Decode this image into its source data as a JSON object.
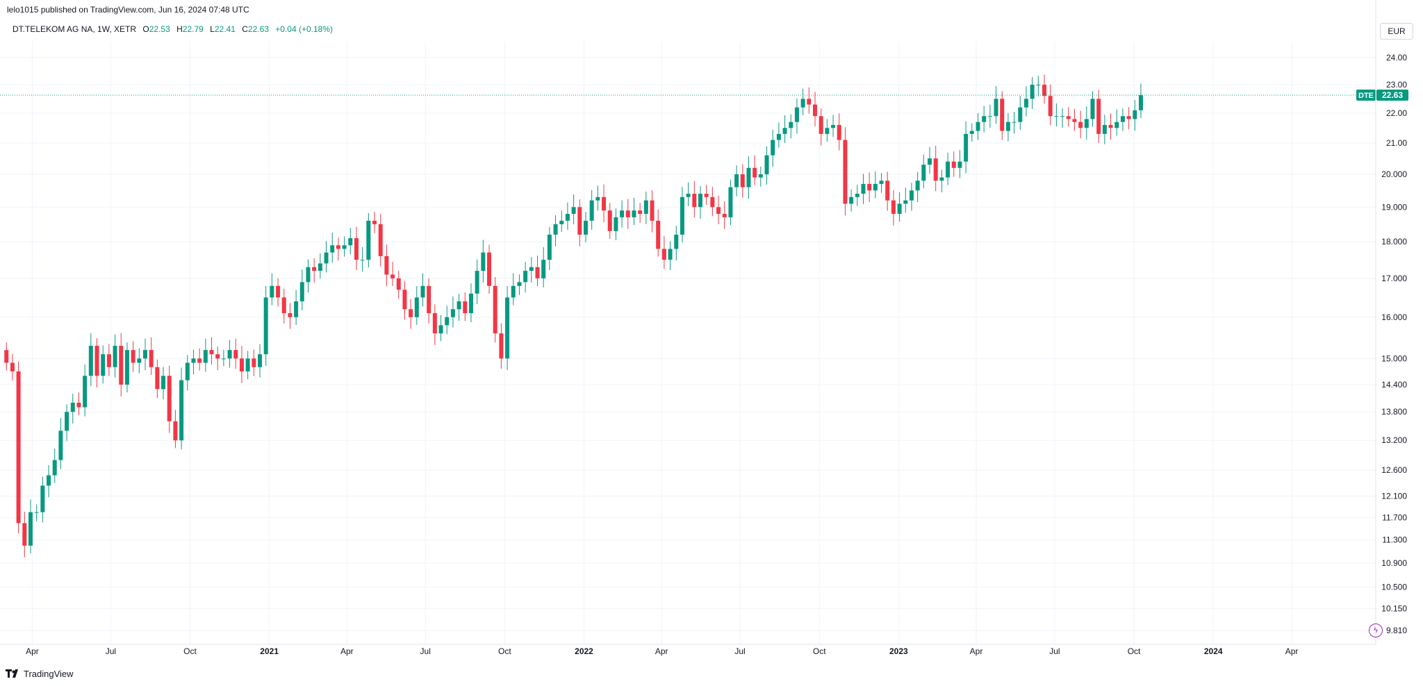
{
  "header": {
    "published": "lelo1015 published on TradingView.com, Jun 16, 2024 07:48 UTC"
  },
  "legend": {
    "symbol": "DT.TELEKOM AG NA, 1W, XETR",
    "open_label": "O",
    "open": "22.53",
    "high_label": "H",
    "high": "22.79",
    "low_label": "L",
    "low": "22.41",
    "close_label": "C",
    "close": "22.63",
    "change": "+0.04 (+0.18%)"
  },
  "currency": "EUR",
  "footer": {
    "brand": "TradingView"
  },
  "colors": {
    "up": "#089981",
    "down": "#f23645",
    "grid": "#f0f3fa",
    "text": "#131722"
  },
  "chart_data": {
    "type": "candlestick",
    "title": "",
    "xlabel": "",
    "ylabel": "",
    "y_scale": "log",
    "ylim": [
      9.6,
      24.6
    ],
    "y_ticks": [
      "24.00",
      "23.00",
      "22.00",
      "21.00",
      "20.000",
      "19.000",
      "18.000",
      "17.000",
      "16.000",
      "15.000",
      "14.400",
      "13.800",
      "13.200",
      "12.600",
      "12.100",
      "11.700",
      "11.300",
      "10.900",
      "10.500",
      "10.150",
      "9.810"
    ],
    "x_ticks": [
      {
        "label": "Apr",
        "date": "2020-04-01"
      },
      {
        "label": "Jul",
        "date": "2020-07-01"
      },
      {
        "label": "Oct",
        "date": "2020-10-01"
      },
      {
        "label": "2021",
        "date": "2021-01-01"
      },
      {
        "label": "Apr",
        "date": "2021-04-01"
      },
      {
        "label": "Jul",
        "date": "2021-07-01"
      },
      {
        "label": "Oct",
        "date": "2021-10-01"
      },
      {
        "label": "2022",
        "date": "2022-01-01"
      },
      {
        "label": "Apr",
        "date": "2022-04-01"
      },
      {
        "label": "Jul",
        "date": "2022-07-01"
      },
      {
        "label": "Oct",
        "date": "2022-10-01"
      },
      {
        "label": "2023",
        "date": "2023-01-01"
      },
      {
        "label": "Apr",
        "date": "2023-04-01"
      },
      {
        "label": "Jul",
        "date": "2023-07-01"
      },
      {
        "label": "Oct",
        "date": "2023-10-01"
      },
      {
        "label": "2024",
        "date": "2024-01-01"
      },
      {
        "label": "Apr",
        "date": "2024-04-01"
      }
    ],
    "last_price": {
      "label": "DTE",
      "value": 22.63
    },
    "weekly_close": [
      14.9,
      14.7,
      11.6,
      11.2,
      11.8,
      11.8,
      12.3,
      12.5,
      12.8,
      13.4,
      13.8,
      14.0,
      13.9,
      14.6,
      15.3,
      14.6,
      15.1,
      14.8,
      15.3,
      14.4,
      15.2,
      14.9,
      15.0,
      15.2,
      14.8,
      14.3,
      14.6,
      13.6,
      13.2,
      14.5,
      14.9,
      15.0,
      14.9,
      15.2,
      15.1,
      15.0,
      15.0,
      15.2,
      15.0,
      14.7,
      15.0,
      14.8,
      15.1,
      16.5,
      16.8,
      16.5,
      16.1,
      16.0,
      16.4,
      16.9,
      17.3,
      17.2,
      17.4,
      17.7,
      17.9,
      17.8,
      17.9,
      18.1,
      17.5,
      17.5,
      18.6,
      18.5,
      17.6,
      17.1,
      17.0,
      16.7,
      16.2,
      16.0,
      16.5,
      16.8,
      16.1,
      15.6,
      15.8,
      16.0,
      16.2,
      16.4,
      16.1,
      16.6,
      17.2,
      17.7,
      16.8,
      15.6,
      15.0,
      16.5,
      16.8,
      16.9,
      17.2,
      17.3,
      17.0,
      17.5,
      18.2,
      18.5,
      18.6,
      18.8,
      19.0,
      18.2,
      18.6,
      19.2,
      19.3,
      18.9,
      18.3,
      18.7,
      18.9,
      18.7,
      18.9,
      18.8,
      19.2,
      18.6,
      17.8,
      17.5,
      17.8,
      18.2,
      19.3,
      19.4,
      19.0,
      19.4,
      19.3,
      19.0,
      18.8,
      18.7,
      19.6,
      20.0,
      19.6,
      20.2,
      19.9,
      20.0,
      20.6,
      21.1,
      21.3,
      21.5,
      21.7,
      22.2,
      22.5,
      22.3,
      21.9,
      21.3,
      21.5,
      21.6,
      21.1,
      19.1,
      19.3,
      19.4,
      19.7,
      19.5,
      19.7,
      19.8,
      19.2,
      18.8,
      19.1,
      19.2,
      19.5,
      19.8,
      20.3,
      20.5,
      19.8,
      19.9,
      20.4,
      20.2,
      20.4,
      21.3,
      21.4,
      21.7,
      21.9,
      21.9,
      22.5,
      21.4,
      21.7,
      21.7,
      22.2,
      22.5,
      23.0,
      23.0,
      22.6,
      21.9,
      21.9,
      21.9,
      21.8,
      21.7,
      21.5,
      21.8,
      22.5,
      21.3,
      21.6,
      21.5,
      21.7,
      21.9,
      21.8,
      22.1,
      22.63
    ],
    "weekly_candles": {
      "first_week": "2020-03-02",
      "note": "open = previous close"
    }
  }
}
